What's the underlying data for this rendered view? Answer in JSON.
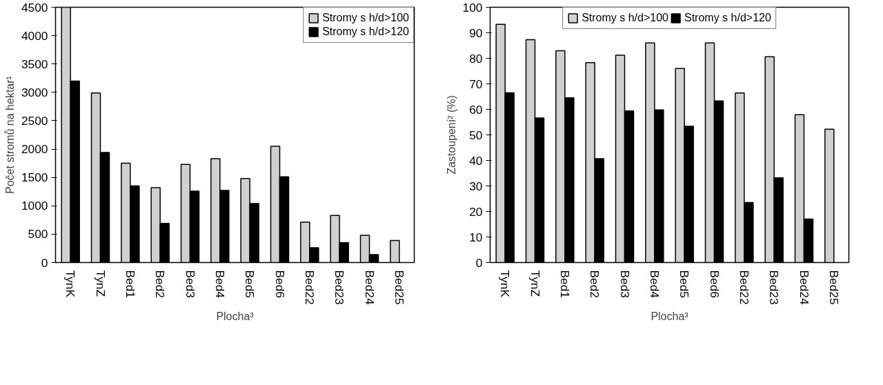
{
  "chart_data": [
    {
      "type": "bar",
      "xlabel": "Plocha³",
      "ylabel": "Počet stromů na hektar¹",
      "categories": [
        "TynK",
        "TynZ",
        "Bed1",
        "Bed2",
        "Bed3",
        "Bed4",
        "Bed5",
        "Bed6",
        "Bed22",
        "Bed23",
        "Bed24",
        "Bed25"
      ],
      "series": [
        {
          "name": "Stromy s h/d>100",
          "color": "#d0d0d0",
          "values": [
            4500,
            2990,
            1750,
            1320,
            1730,
            1830,
            1480,
            2050,
            710,
            830,
            480,
            390
          ]
        },
        {
          "name": "Stromy s h/d>120",
          "color": "#000000",
          "values": [
            3200,
            1940,
            1350,
            690,
            1260,
            1270,
            1040,
            1510,
            260,
            350,
            140,
            null
          ]
        }
      ],
      "ylim": [
        0,
        4500
      ],
      "yticks": [
        0,
        500,
        1000,
        1500,
        2000,
        2500,
        3000,
        3500,
        4000,
        4500
      ],
      "grid": false,
      "legend": "top right"
    },
    {
      "type": "bar",
      "xlabel": "Plocha³",
      "ylabel": "Zastoupení² (%)",
      "categories": [
        "TynK",
        "TynZ",
        "Bed1",
        "Bed2",
        "Bed3",
        "Bed4",
        "Bed5",
        "Bed6",
        "Bed22",
        "Bed23",
        "Bed24",
        "Bed25"
      ],
      "series": [
        {
          "name": "Stromy s h/d>100",
          "color": "#d0d0d0",
          "values": [
            93.3,
            87.3,
            83,
            78.3,
            81.2,
            86,
            76,
            86,
            66.4,
            80.6,
            57.9,
            52.2
          ]
        },
        {
          "name": "Stromy s h/d>120",
          "color": "#000000",
          "values": [
            66.5,
            56.6,
            64.5,
            40.7,
            59.4,
            59.8,
            53.4,
            63.3,
            23.5,
            33.2,
            17,
            null
          ]
        }
      ],
      "ylim": [
        0,
        100
      ],
      "yticks": [
        0,
        10,
        20,
        30,
        40,
        50,
        60,
        70,
        80,
        90,
        100
      ],
      "grid": false,
      "legend": "top"
    }
  ]
}
